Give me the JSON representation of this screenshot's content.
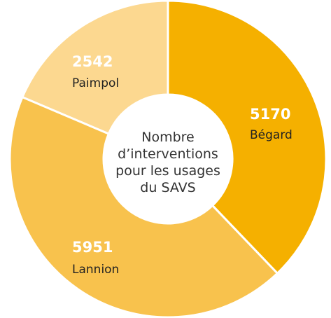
{
  "chart_data": {
    "type": "pie",
    "center_text": [
      "Nombre",
      "d’interventions",
      "pour les usages",
      "du SAVS"
    ],
    "categories": [
      "Bégard",
      "Lannion",
      "Paimpol"
    ],
    "values": [
      5170,
      5951,
      2542
    ],
    "colors": [
      "#f5b000",
      "#f8c24d",
      "#fcd890"
    ]
  }
}
